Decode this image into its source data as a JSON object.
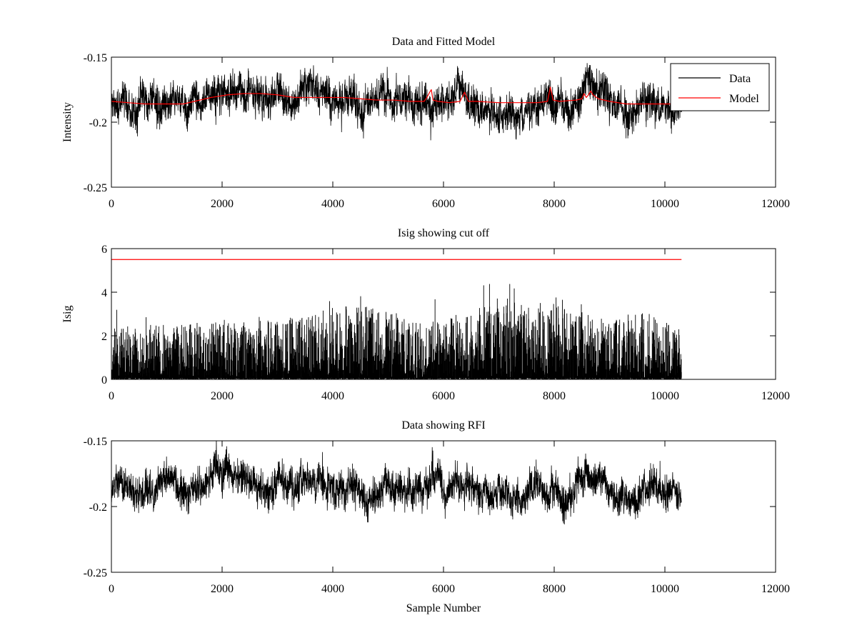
{
  "figure": {
    "background": "#ffffff"
  },
  "chart_data": [
    {
      "type": "line",
      "title": "Data and Fitted Model",
      "xlabel": "",
      "ylabel": "Intensity",
      "xlim": [
        0,
        12000
      ],
      "ylim": [
        -0.25,
        -0.15
      ],
      "x_ticks": [
        0,
        2000,
        4000,
        6000,
        8000,
        10000,
        12000
      ],
      "y_ticks": [
        -0.25,
        -0.2,
        -0.15
      ],
      "x_tick_labels": [
        "0",
        "2000",
        "4000",
        "6000",
        "8000",
        "10000",
        "12000"
      ],
      "y_tick_labels": [
        "-0.25",
        "-0.2",
        "-0.15"
      ],
      "grid": false,
      "legend": "top-right",
      "series": [
        {
          "name": "Data",
          "color": "#000000",
          "render": "noisy",
          "n_samples": 10300,
          "noise_amplitude": 0.014,
          "baseline": {
            "x": [
              0,
              500,
              1000,
              1400,
              1500,
              1700,
              2000,
              2400,
              2800,
              3200,
              3600,
              3800,
              4000,
              4400,
              4700,
              5000,
              5500,
              5800,
              6000,
              6400,
              6800,
              7000,
              7400,
              7600,
              7800,
              8000,
              8200,
              8400,
              8600,
              8800,
              9000,
              9400,
              9600,
              9800,
              10000,
              10300
            ],
            "y": [
              -0.184,
              -0.186,
              -0.187,
              -0.192,
              -0.186,
              -0.18,
              -0.176,
              -0.177,
              -0.181,
              -0.183,
              -0.181,
              -0.176,
              -0.183,
              -0.181,
              -0.19,
              -0.184,
              -0.186,
              -0.179,
              -0.186,
              -0.18,
              -0.193,
              -0.196,
              -0.193,
              -0.19,
              -0.185,
              -0.19,
              -0.196,
              -0.186,
              -0.176,
              -0.181,
              -0.186,
              -0.191,
              -0.184,
              -0.188,
              -0.191,
              -0.186
            ]
          }
        },
        {
          "name": "Model",
          "color": "#ff0000",
          "render": "line",
          "x": [
            0,
            300,
            600,
            1000,
            1300,
            1500,
            1800,
            2100,
            2400,
            2700,
            3000,
            3300,
            3600,
            3900,
            4200,
            4500,
            4800,
            5100,
            5400,
            5650,
            5700,
            5750,
            5780,
            5810,
            5900,
            6100,
            6300,
            6380,
            6450,
            6600,
            7000,
            7400,
            7700,
            7880,
            7930,
            7980,
            8100,
            8400,
            8500,
            8540,
            8580,
            8620,
            8660,
            8700,
            8800,
            9000,
            9300,
            9600,
            10000,
            10300
          ],
          "y": [
            -0.184,
            -0.185,
            -0.186,
            -0.186,
            -0.186,
            -0.184,
            -0.181,
            -0.179,
            -0.178,
            -0.178,
            -0.179,
            -0.181,
            -0.181,
            -0.181,
            -0.181,
            -0.182,
            -0.183,
            -0.183,
            -0.184,
            -0.184,
            -0.181,
            -0.177,
            -0.175,
            -0.183,
            -0.184,
            -0.185,
            -0.184,
            -0.177,
            -0.184,
            -0.184,
            -0.185,
            -0.185,
            -0.185,
            -0.184,
            -0.173,
            -0.183,
            -0.184,
            -0.183,
            -0.182,
            -0.178,
            -0.181,
            -0.179,
            -0.176,
            -0.179,
            -0.182,
            -0.184,
            -0.186,
            -0.186,
            -0.186,
            -0.186
          ]
        }
      ]
    },
    {
      "type": "line",
      "title": "Isig showing cut off",
      "xlabel": "",
      "ylabel": "Isig",
      "xlim": [
        0,
        12000
      ],
      "ylim": [
        0,
        6
      ],
      "x_ticks": [
        0,
        2000,
        4000,
        6000,
        8000,
        10000,
        12000
      ],
      "y_ticks": [
        0,
        2,
        4,
        6
      ],
      "x_tick_labels": [
        "0",
        "2000",
        "4000",
        "6000",
        "8000",
        "10000",
        "12000"
      ],
      "y_tick_labels": [
        "0",
        "2",
        "4",
        "6"
      ],
      "grid": false,
      "series": [
        {
          "color": "#000000",
          "render": "spikes",
          "n_samples": 10300,
          "envelope": {
            "x": [
              0,
              1400,
              2000,
              3000,
              3800,
              4000,
              4700,
              5500,
              6000,
              6800,
              7000,
              7600,
              8000,
              8200,
              8600,
              9000,
              9600,
              10300
            ],
            "y": [
              2.4,
              2.6,
              2.8,
              2.7,
              3.2,
              3.4,
              3.4,
              2.6,
              2.8,
              3.4,
              3.9,
              3.3,
              3.9,
              3.6,
              3.0,
              2.8,
              3.2,
              2.4
            ]
          }
        },
        {
          "name": "cut off",
          "color": "#ff0000",
          "render": "line",
          "x": [
            0,
            10300
          ],
          "y": [
            5.5,
            5.5
          ]
        }
      ]
    },
    {
      "type": "line",
      "title": "Data showing RFI",
      "xlabel": "Sample Number",
      "ylabel": "",
      "xlim": [
        0,
        12000
      ],
      "ylim": [
        -0.25,
        -0.15
      ],
      "x_ticks": [
        0,
        2000,
        4000,
        6000,
        8000,
        10000,
        12000
      ],
      "y_ticks": [
        -0.25,
        -0.2,
        -0.15
      ],
      "x_tick_labels": [
        "0",
        "2000",
        "4000",
        "6000",
        "8000",
        "10000",
        "12000"
      ],
      "y_tick_labels": [
        "-0.25",
        "-0.2",
        "-0.15"
      ],
      "grid": false,
      "series": [
        {
          "color": "#000000",
          "render": "noisy",
          "n_samples": 10300,
          "noise_amplitude": 0.013,
          "baseline": {
            "x": [
              0,
              500,
              1000,
              1400,
              1500,
              1700,
              2000,
              2400,
              2800,
              3200,
              3600,
              3800,
              4000,
              4400,
              4700,
              5000,
              5500,
              5800,
              6000,
              6400,
              6800,
              7000,
              7400,
              7600,
              7800,
              8000,
              8200,
              8400,
              8600,
              8800,
              9000,
              9400,
              9600,
              9800,
              10000,
              10300
            ],
            "y": [
              -0.184,
              -0.186,
              -0.187,
              -0.192,
              -0.186,
              -0.18,
              -0.176,
              -0.177,
              -0.181,
              -0.183,
              -0.181,
              -0.176,
              -0.183,
              -0.181,
              -0.19,
              -0.184,
              -0.186,
              -0.181,
              -0.186,
              -0.181,
              -0.193,
              -0.196,
              -0.193,
              -0.19,
              -0.186,
              -0.19,
              -0.196,
              -0.186,
              -0.177,
              -0.181,
              -0.186,
              -0.191,
              -0.184,
              -0.188,
              -0.191,
              -0.186
            ]
          }
        }
      ]
    }
  ]
}
